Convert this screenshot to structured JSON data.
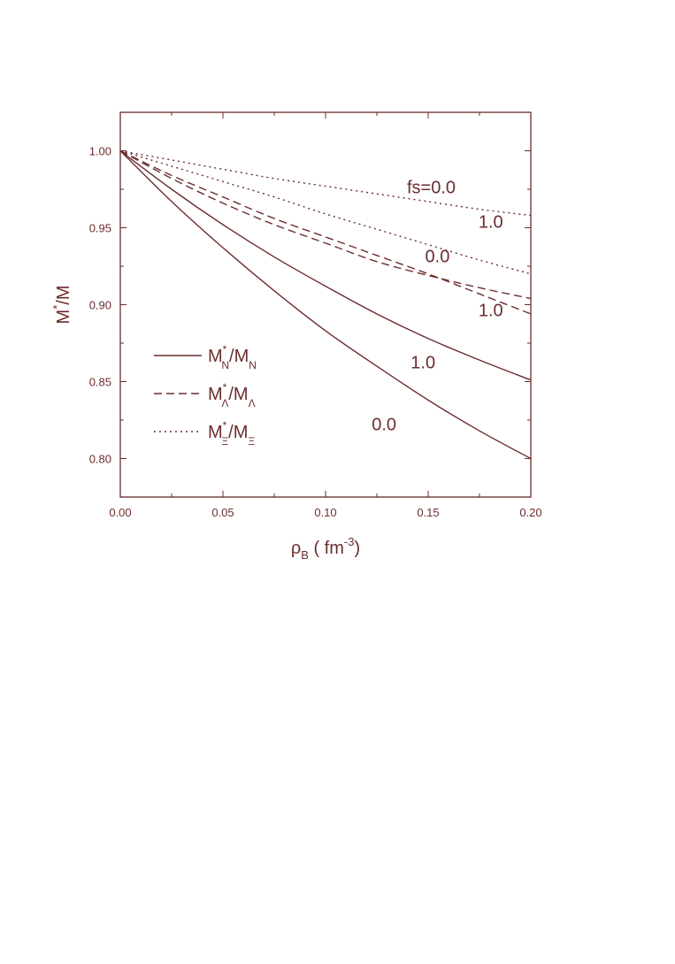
{
  "colors": {
    "ink": "#6b2d2d"
  },
  "chart_data": {
    "type": "line",
    "xlabel": {
      "main": "ρ",
      "sub": "B",
      "open": " ( fm",
      "sup": "-3",
      "close": ")"
    },
    "ylabel": {
      "main": "M",
      "sup": "*",
      "rest": "/M"
    },
    "xlim": [
      0.0,
      0.2
    ],
    "ylim": [
      0.775,
      1.025
    ],
    "xticks": [
      "0.00",
      "0.05",
      "0.10",
      "0.15",
      "0.20"
    ],
    "yticks": [
      "0.80",
      "0.85",
      "0.90",
      "0.95",
      "1.00"
    ],
    "grid": false,
    "legend_position": "center-left",
    "legend": [
      {
        "style": "solid",
        "main": "M",
        "sup": "*",
        "sub1": "N",
        "mid": "/M",
        "sub2": "N"
      },
      {
        "style": "dashed",
        "main": "M",
        "sup": "*",
        "sub1": "Λ",
        "mid": "/M",
        "sub2": "Λ"
      },
      {
        "style": "dotted",
        "main": "M",
        "sup": "*",
        "sub1": "Ξ",
        "mid": "/M",
        "sub2": "Ξ"
      }
    ],
    "series": [
      {
        "style": "solid",
        "x": [
          0.0,
          0.025,
          0.05,
          0.075,
          0.1,
          0.125,
          0.15,
          0.175,
          0.2
        ],
        "y": [
          1.0,
          0.967,
          0.937,
          0.909,
          0.883,
          0.86,
          0.838,
          0.818,
          0.8
        ]
      },
      {
        "style": "solid",
        "x": [
          0.0,
          0.025,
          0.05,
          0.075,
          0.1,
          0.125,
          0.15,
          0.175,
          0.2
        ],
        "y": [
          1.0,
          0.975,
          0.952,
          0.931,
          0.912,
          0.894,
          0.878,
          0.864,
          0.851
        ]
      },
      {
        "style": "dashed",
        "x": [
          0.0,
          0.025,
          0.05,
          0.075,
          0.1,
          0.125,
          0.15,
          0.175,
          0.2
        ],
        "y": [
          1.0,
          0.984,
          0.97,
          0.956,
          0.944,
          0.932,
          0.92,
          0.907,
          0.894
        ]
      },
      {
        "style": "dashed",
        "x": [
          0.0,
          0.025,
          0.05,
          0.075,
          0.1,
          0.125,
          0.15,
          0.175,
          0.2
        ],
        "y": [
          1.0,
          0.982,
          0.966,
          0.952,
          0.94,
          0.928,
          0.919,
          0.911,
          0.904
        ]
      },
      {
        "style": "dotted",
        "x": [
          0.0,
          0.025,
          0.05,
          0.075,
          0.1,
          0.125,
          0.15,
          0.175,
          0.2
        ],
        "y": [
          1.0,
          0.99,
          0.98,
          0.97,
          0.959,
          0.949,
          0.939,
          0.929,
          0.92
        ]
      },
      {
        "style": "dotted",
        "x": [
          0.0,
          0.025,
          0.05,
          0.075,
          0.1,
          0.125,
          0.15,
          0.175,
          0.2
        ],
        "y": [
          1.0,
          0.994,
          0.988,
          0.982,
          0.977,
          0.972,
          0.967,
          0.962,
          0.958
        ]
      }
    ],
    "annotations": [
      {
        "text": "fs=0.0",
        "x": 0.1515,
        "y": 0.9725
      },
      {
        "text": "1.0",
        "x": 0.1805,
        "y": 0.95
      },
      {
        "text": "0.0",
        "x": 0.1545,
        "y": 0.9275
      },
      {
        "text": "1.0",
        "x": 0.1805,
        "y": 0.8925
      },
      {
        "text": "1.0",
        "x": 0.1475,
        "y": 0.8585
      },
      {
        "text": "0.0",
        "x": 0.1285,
        "y": 0.8185
      }
    ]
  }
}
